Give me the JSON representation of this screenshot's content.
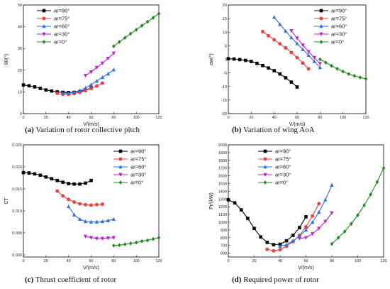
{
  "colors": {
    "s90": "#000000",
    "s75": "#e8433c",
    "s60": "#2f6fe4",
    "s30": "#c41fd6",
    "s0": "#1f8a1f"
  },
  "chart_data": [
    {
      "type": "line",
      "caption": {
        "letter": "(a)",
        "text": " Variation of rotor collective pitch"
      },
      "xlabel": "V/(m/s)",
      "ylabel": "θ0(°)",
      "xlim": [
        0,
        120
      ],
      "ylim": [
        0,
        50
      ],
      "xticks": [
        "0",
        "20",
        "40",
        "60",
        "80",
        "100",
        "120"
      ],
      "yticks": [
        "0",
        "10",
        "20",
        "30",
        "40",
        "50"
      ],
      "legend": "top-left",
      "series": [
        {
          "name": "ar=90°",
          "marker": "square",
          "color": "#000000",
          "x": [
            0,
            5,
            10,
            15,
            20,
            25,
            30,
            35,
            40,
            45,
            50,
            55,
            60
          ],
          "y": [
            13.2,
            12.8,
            12.3,
            11.6,
            10.9,
            10.4,
            10.0,
            9.8,
            9.7,
            9.8,
            10.2,
            10.8,
            11.8
          ]
        },
        {
          "name": "ar=75°",
          "marker": "circle",
          "color": "#e8433c",
          "x": [
            30,
            35,
            40,
            45,
            50,
            55,
            60,
            65,
            70
          ],
          "y": [
            9.3,
            8.9,
            8.9,
            9.2,
            9.8,
            10.6,
            11.6,
            12.7,
            14.0
          ]
        },
        {
          "name": "ar=60°",
          "marker": "triangle-up",
          "color": "#2f6fe4",
          "x": [
            35,
            40,
            45,
            50,
            55,
            60,
            65,
            70,
            75,
            80
          ],
          "y": [
            9.5,
            9.4,
            9.8,
            10.6,
            11.8,
            13.3,
            15.0,
            16.7,
            18.3,
            20.2
          ]
        },
        {
          "name": "ar=30°",
          "marker": "triangle-down",
          "color": "#c41fd6",
          "x": [
            55,
            60,
            65,
            70,
            75,
            80
          ],
          "y": [
            17.5,
            19.2,
            21.2,
            23.2,
            25.4,
            27.8
          ]
        },
        {
          "name": "ar=0°",
          "marker": "diamond",
          "color": "#1f8a1f",
          "x": [
            80,
            85,
            90,
            95,
            100,
            105,
            110,
            115,
            120
          ],
          "y": [
            31.0,
            33.0,
            34.9,
            36.8,
            38.6,
            40.5,
            42.3,
            44.1,
            46.0
          ]
        }
      ]
    },
    {
      "type": "line",
      "caption": {
        "letter": "(b)",
        "text": " Variation of wing AoA"
      },
      "xlabel": "V/(m/s)",
      "ylabel": "αw(°)",
      "xlim": [
        0,
        120
      ],
      "ylim": [
        -20,
        20
      ],
      "xticks": [
        "0",
        "20",
        "40",
        "60",
        "80",
        "100",
        "120"
      ],
      "yticks": [
        "-20",
        "-15",
        "-10",
        "-5",
        "0",
        "5",
        "10",
        "15",
        "20"
      ],
      "legend": "top-right",
      "series": [
        {
          "name": "ar=90°",
          "marker": "square",
          "color": "#000000",
          "x": [
            0,
            5,
            10,
            15,
            20,
            25,
            30,
            35,
            40,
            45,
            50,
            55,
            60
          ],
          "y": [
            0.2,
            0.1,
            -0.1,
            -0.4,
            -0.8,
            -1.5,
            -2.3,
            -3.2,
            -4.2,
            -5.4,
            -6.8,
            -8.4,
            -10.2
          ]
        },
        {
          "name": "ar=75°",
          "marker": "circle",
          "color": "#e8433c",
          "x": [
            30,
            35,
            40,
            45,
            50,
            55,
            60,
            65,
            70
          ],
          "y": [
            10.2,
            8.7,
            7.2,
            5.7,
            4.2,
            2.5,
            0.6,
            -1.4,
            -3.5
          ]
        },
        {
          "name": "ar=60°",
          "marker": "triangle-up",
          "color": "#2f6fe4",
          "x": [
            40,
            45,
            50,
            55,
            60,
            65,
            70,
            75,
            80
          ],
          "y": [
            15.5,
            12.9,
            10.4,
            8.0,
            5.8,
            3.6,
            1.5,
            -0.8,
            -3.0
          ]
        },
        {
          "name": "ar=30°",
          "marker": "triangle-down",
          "color": "#c41fd6",
          "x": [
            55,
            60,
            65,
            70,
            75,
            80
          ],
          "y": [
            10.5,
            7.8,
            5.2,
            2.8,
            0.6,
            -1.6
          ]
        },
        {
          "name": "ar=0°",
          "marker": "diamond",
          "color": "#1f8a1f",
          "x": [
            80,
            85,
            90,
            95,
            100,
            105,
            110,
            115,
            120
          ],
          "y": [
            0.0,
            -1.2,
            -2.4,
            -3.5,
            -4.5,
            -5.4,
            -6.1,
            -6.7,
            -7.2
          ]
        }
      ]
    },
    {
      "type": "line",
      "caption": {
        "letter": "(c)",
        "text": " Thrust coefficient of rotor"
      },
      "xlabel": "V/(m/s)",
      "ylabel": "CT",
      "xlim": [
        0,
        120
      ],
      "ylim": [
        -0.0005,
        0.025
      ],
      "xticks": [
        "0",
        "20",
        "40",
        "60",
        "80",
        "100",
        "120"
      ],
      "yticks": [
        "0.000",
        "0.005",
        "0.010",
        "0.015",
        "0.020",
        "0.025"
      ],
      "legend": "top-right",
      "series": [
        {
          "name": "ar=90°",
          "marker": "square",
          "color": "#000000",
          "x": [
            0,
            5,
            10,
            15,
            20,
            25,
            30,
            35,
            40,
            45,
            50,
            55,
            60
          ],
          "y": [
            0.0187,
            0.0186,
            0.0184,
            0.0181,
            0.0177,
            0.0173,
            0.0169,
            0.0165,
            0.0162,
            0.0161,
            0.0161,
            0.0163,
            0.0169
          ]
        },
        {
          "name": "ar=75°",
          "marker": "circle",
          "color": "#e8433c",
          "x": [
            30,
            35,
            40,
            45,
            50,
            55,
            60,
            65,
            70
          ],
          "y": [
            0.0145,
            0.0134,
            0.0126,
            0.012,
            0.0116,
            0.0114,
            0.0113,
            0.0114,
            0.0115
          ]
        },
        {
          "name": "ar=60°",
          "marker": "triangle-up",
          "color": "#2f6fe4",
          "x": [
            40,
            45,
            50,
            55,
            60,
            65,
            70,
            75,
            80
          ],
          "y": [
            0.011,
            0.0091,
            0.0081,
            0.0076,
            0.0075,
            0.0075,
            0.0076,
            0.0078,
            0.0081
          ]
        },
        {
          "name": "ar=30°",
          "marker": "triangle-down",
          "color": "#c41fd6",
          "x": [
            55,
            60,
            65,
            70,
            75,
            80
          ],
          "y": [
            0.0042,
            0.0039,
            0.0037,
            0.0037,
            0.0038,
            0.0039
          ]
        },
        {
          "name": "ar=0°",
          "marker": "diamond",
          "color": "#1f8a1f",
          "x": [
            80,
            85,
            90,
            95,
            100,
            105,
            110,
            115,
            120
          ],
          "y": [
            0.0021,
            0.0022,
            0.0024,
            0.0026,
            0.0028,
            0.0031,
            0.0033,
            0.0036,
            0.0039
          ]
        }
      ]
    },
    {
      "type": "line",
      "caption": {
        "letter": "(d)",
        "text": " Required power of rotor"
      },
      "xlabel": "V/(m/s)",
      "ylabel": "Pr/(kW)",
      "xlim": [
        0,
        120
      ],
      "ylim": [
        550,
        2000
      ],
      "xticks": [
        "0",
        "20",
        "40",
        "60",
        "80",
        "100",
        "120"
      ],
      "yticks": [
        "600",
        "700",
        "800",
        "900",
        "1000",
        "1100",
        "1200",
        "1300",
        "1400",
        "1500",
        "1600",
        "1700",
        "1800",
        "1900",
        "2000"
      ],
      "legend": "top-left",
      "series": [
        {
          "name": "ar=90°",
          "marker": "square",
          "color": "#000000",
          "x": [
            0,
            5,
            10,
            15,
            20,
            25,
            30,
            35,
            40,
            45,
            50,
            55,
            60
          ],
          "y": [
            1290,
            1250,
            1160,
            1050,
            920,
            810,
            740,
            710,
            715,
            760,
            830,
            930,
            1070
          ]
        },
        {
          "name": "ar=75°",
          "marker": "circle",
          "color": "#e8433c",
          "x": [
            30,
            35,
            40,
            45,
            50,
            55,
            60,
            65,
            70
          ],
          "y": [
            650,
            630,
            645,
            690,
            750,
            830,
            940,
            1080,
            1240
          ]
        },
        {
          "name": "ar=60°",
          "marker": "triangle-up",
          "color": "#2f6fe4",
          "x": [
            40,
            45,
            50,
            55,
            60,
            65,
            70,
            75,
            80
          ],
          "y": [
            690,
            710,
            760,
            820,
            900,
            1000,
            1130,
            1290,
            1480
          ]
        },
        {
          "name": "ar=30°",
          "marker": "triangle-down",
          "color": "#c41fd6",
          "x": [
            55,
            60,
            65,
            70,
            75,
            80
          ],
          "y": [
            790,
            800,
            850,
            920,
            1010,
            1120
          ]
        },
        {
          "name": "ar=0°",
          "marker": "diamond",
          "color": "#1f8a1f",
          "x": [
            80,
            85,
            90,
            95,
            100,
            105,
            110,
            115,
            120
          ],
          "y": [
            720,
            800,
            880,
            980,
            1090,
            1220,
            1360,
            1520,
            1700
          ]
        }
      ]
    }
  ]
}
